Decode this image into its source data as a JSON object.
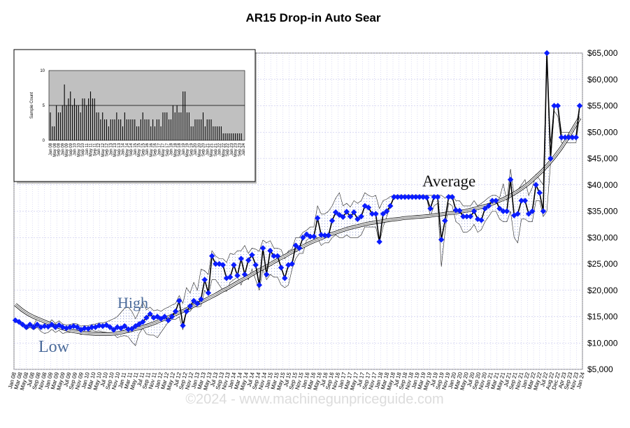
{
  "chart_data": {
    "type": "line",
    "title": "AR15 Drop-in Auto Sear",
    "y_ticks": [
      "$5,000",
      "$10,000",
      "$15,000",
      "$20,000",
      "$25,000",
      "$30,000",
      "$35,000",
      "$40,000",
      "$45,000",
      "$50,000",
      "$55,000",
      "$60,000",
      "$65,000"
    ],
    "ylim": [
      5000,
      65000
    ],
    "x_labels": [
      "Jan 08",
      "Mar 08",
      "May 08",
      "Jul 08",
      "Sep 08",
      "Nov 08",
      "Jan 09",
      "Mar 09",
      "May 09",
      "Jul 09",
      "Sep 09",
      "Nov 09",
      "Jan 10",
      "Mar 10",
      "May 10",
      "Jul 10",
      "Sep 10",
      "Nov 10",
      "Jan 11",
      "Mar 11",
      "May 11",
      "Jul 11",
      "Sep 11",
      "Nov 11",
      "Jan 12",
      "Mar 12",
      "May 12",
      "Jul 12",
      "Sep 12",
      "Nov 12",
      "Jan 13",
      "Mar 13",
      "May 13",
      "Jul 13",
      "Sep 13",
      "Nov 13",
      "Jan 14",
      "Mar 14",
      "May 14",
      "Jul 14",
      "Sep 14",
      "Nov 14",
      "Jan 15",
      "Mar 15",
      "May 15",
      "Jul 15",
      "Sep 15",
      "Nov 15",
      "Jan 16",
      "Mar 16",
      "May 16",
      "Jul 16",
      "Sep 16",
      "Nov 16",
      "Jan 17",
      "Mar 17",
      "May 17",
      "Jul 17",
      "Sep 17",
      "Nov 17",
      "Jan 18",
      "Mar 18",
      "May 18",
      "Jul 18",
      "Sep 18",
      "Nov 18",
      "Jan 19",
      "Mar 19",
      "May 19",
      "Jul 19",
      "Sep 19",
      "Nov 19",
      "Jan 20",
      "Mar 20",
      "May 20",
      "Jul 20",
      "Sep 20",
      "Nov 20",
      "Jan 21",
      "Mar 21",
      "May 21",
      "Jul 21",
      "Sep 21",
      "Nov 21",
      "Jan 22",
      "Mar 22",
      "May 22",
      "Jul 22",
      "Aug 22",
      "Dec 22",
      "Apr 23",
      "Sep 23",
      "Nov 23",
      "Jan 24"
    ],
    "price": [
      14300,
      14000,
      13500,
      13000,
      13500,
      13000,
      13500,
      13000,
      13200,
      13100,
      13500,
      13000,
      13400,
      13000,
      12800,
      13000,
      13200,
      13000,
      12500,
      12800,
      12700,
      13000,
      13000,
      13300,
      13200,
      13400,
      13000,
      12500,
      13000,
      12800,
      13200,
      12600,
      12700,
      13200,
      13600,
      14000,
      14800,
      15500,
      14800,
      15000,
      14600,
      15000,
      14300,
      15000,
      16000,
      18000,
      13300,
      16000,
      17000,
      18000,
      17500,
      18300,
      22000,
      19500,
      26500,
      25000,
      25000,
      24800,
      22300,
      22500,
      24800,
      22800,
      26000,
      23000,
      25700,
      26700,
      24800,
      21000,
      28000,
      23000,
      27500,
      26500,
      26500,
      24300,
      22300,
      24800,
      25000,
      28500,
      28000,
      30000,
      30600,
      30200,
      30200,
      33700,
      30500,
      30400,
      30400,
      33200,
      34800,
      34300,
      33900,
      34900,
      34000,
      34800,
      33500,
      34000,
      36000,
      35700,
      34500,
      34500,
      29200,
      34500,
      35000,
      36000,
      37700,
      37700,
      37700,
      37700,
      37700,
      37700,
      37700,
      37700,
      37700,
      37600,
      35500,
      37700,
      37700,
      29600,
      33200,
      37700,
      37700,
      35200,
      35100,
      34000,
      34000,
      34000,
      35000,
      33500,
      33300,
      35500,
      36000,
      37000,
      37000,
      35500,
      35000,
      35000,
      41000,
      34200,
      34500,
      37000,
      37000,
      34500,
      35000,
      40000,
      38500,
      35000,
      65000,
      45000,
      55000,
      55000,
      49000,
      49000,
      49000,
      49000,
      49000,
      55000
    ],
    "high": [
      14500,
      14200,
      13800,
      13300,
      13800,
      13300,
      14800,
      14200,
      13800,
      13600,
      14400,
      13700,
      14200,
      13600,
      13400,
      13500,
      13700,
      13600,
      13200,
      13300,
      13300,
      13500,
      13600,
      13800,
      13800,
      14000,
      14300,
      14600,
      15000,
      15800,
      16600,
      16800,
      16000,
      14600,
      16000,
      17800,
      16300,
      16800,
      16100,
      16300,
      16000,
      16500,
      16800,
      17200,
      17500,
      19000,
      17500,
      20500,
      19500,
      21500,
      20000,
      24000,
      23700,
      23000,
      27500,
      26500,
      26000,
      26000,
      25300,
      27000,
      26800,
      27500,
      27500,
      28500,
      27000,
      28000,
      27800,
      27400,
      29500,
      29000,
      29400,
      28000,
      28000,
      27700,
      26000,
      27500,
      27800,
      30000,
      30000,
      31000,
      31400,
      32000,
      32000,
      36000,
      34500,
      34500,
      35000,
      36000,
      37500,
      38500,
      36000,
      36500,
      35800,
      37000,
      36500,
      37000,
      38500,
      38000,
      37700,
      38000,
      35500,
      37000,
      37300,
      37800,
      38000,
      38000,
      38000,
      38000,
      38000,
      38000,
      38000,
      38000,
      38000,
      38000,
      38000,
      38000,
      38000,
      38000,
      37500,
      38000,
      38000,
      37000,
      37000,
      36000,
      36000,
      36000,
      37000,
      36000,
      36500,
      37000,
      37600,
      38000,
      38000,
      37500,
      40200,
      37000,
      43000,
      38000,
      39000,
      40000,
      41000,
      38000,
      39500,
      42000,
      41000,
      40000,
      65000,
      48000,
      55000,
      55000,
      50000,
      50000,
      50000,
      50000,
      51000,
      55000
    ],
    "low": [
      14000,
      13700,
      13200,
      12500,
      13000,
      12500,
      13000,
      12200,
      11800,
      12000,
      12600,
      12000,
      12400,
      11800,
      12000,
      12000,
      12400,
      12000,
      11600,
      11800,
      12000,
      12500,
      12200,
      12300,
      12100,
      12000,
      11800,
      11700,
      11000,
      11300,
      11400,
      11200,
      10200,
      9500,
      11800,
      12800,
      11700,
      11500,
      11500,
      11000,
      12000,
      13000,
      14000,
      14500,
      14500,
      15000,
      12500,
      16000,
      16000,
      17000,
      16800,
      17000,
      20000,
      19000,
      22000,
      22000,
      21000,
      20000,
      19800,
      21500,
      22000,
      22500,
      21000,
      23000,
      22000,
      24000,
      22000,
      20000,
      24000,
      22000,
      23000,
      22500,
      22500,
      21000,
      20500,
      21000,
      24000,
      26000,
      27000,
      27000,
      29500,
      30000,
      30000,
      30000,
      28500,
      29000,
      29000,
      30000,
      30500,
      30000,
      30000,
      30500,
      30000,
      30000,
      30000,
      30500,
      32000,
      32000,
      32000,
      32000,
      29000,
      32000,
      34000,
      36000,
      37500,
      37500,
      37500,
      37500,
      37500,
      37500,
      37500,
      37500,
      37500,
      37500,
      34000,
      36000,
      36500,
      24500,
      31000,
      36500,
      36000,
      33000,
      32500,
      31000,
      31000,
      31500,
      32500,
      31000,
      31500,
      33000,
      34000,
      35000,
      35000,
      33500,
      33000,
      33000,
      35000,
      30000,
      29000,
      33500,
      33500,
      33000,
      33000,
      37000,
      37000,
      34000,
      35000,
      44000,
      54000,
      53000,
      48000,
      48000,
      48000,
      48000,
      48000,
      53000
    ],
    "average": [
      17300,
      16300,
      15500,
      14900,
      14400,
      13900,
      13400,
      13000,
      12600,
      12300,
      12100,
      11900,
      11800,
      11700,
      11700,
      11700,
      11800,
      12000,
      12300,
      12600,
      12900,
      13300,
      13700,
      14200,
      14700,
      15200,
      15700,
      16200,
      16800,
      17400,
      18000,
      18600,
      19200,
      19900,
      20500,
      21200,
      21900,
      22500,
      23200,
      23900,
      24500,
      25200,
      25900,
      26500,
      27200,
      27800,
      28400,
      29000,
      29500,
      30000,
      30500,
      30900,
      31300,
      31700,
      32000,
      32300,
      32600,
      32800,
      33000,
      33200,
      33400,
      33500,
      33700,
      33800,
      33900,
      34000,
      34100,
      34300,
      34400,
      34600,
      34700,
      34900,
      35100,
      35400,
      35700,
      36000,
      36400,
      36900,
      37400,
      38000,
      38700,
      39500,
      40400,
      41500,
      42600,
      43900,
      45300,
      46900,
      48700,
      50700,
      52700
    ],
    "sample_counts": [
      4,
      2,
      2,
      5,
      4,
      4,
      5,
      8,
      5,
      6,
      7,
      5,
      6,
      5,
      5,
      4,
      6,
      6,
      5,
      6,
      7,
      6,
      6,
      4,
      4,
      3,
      4,
      3,
      3,
      2,
      3,
      3,
      3,
      4,
      3,
      3,
      2,
      4,
      3,
      3,
      3,
      3,
      3,
      2,
      2,
      3,
      4,
      3,
      3,
      3,
      2,
      3,
      2,
      3,
      3,
      2,
      4,
      4,
      4,
      3,
      3,
      5,
      4,
      5,
      4,
      4,
      7,
      7,
      4,
      4,
      2,
      2,
      3,
      3,
      3,
      3,
      4,
      2,
      3,
      3,
      3,
      2,
      2,
      2,
      2,
      2,
      1,
      1,
      1,
      1,
      1,
      1,
      1,
      1,
      1,
      1
    ],
    "inset_y_ticks": [
      "0",
      "5",
      "10"
    ],
    "inset_ylabel": "Sample Count",
    "inset_x_labels": [
      "Jan 08",
      "May 08",
      "Sep 08",
      "Jan 09",
      "May 09",
      "Sep 09",
      "Jan 10",
      "May 10",
      "Sep 10",
      "Jan 11",
      "May 11",
      "Sep 11",
      "Jan 12",
      "May 12",
      "Sep 12",
      "Jan 13",
      "May 13",
      "Sep 13",
      "Jan 14",
      "May 14",
      "Sep 14",
      "Jan 15",
      "May 15",
      "Sep 15",
      "Jan 16",
      "May 16",
      "Sep 16",
      "Jan 17",
      "May 17",
      "Sep 17",
      "Jan 18",
      "May 18",
      "Sep 18",
      "Jan 19",
      "May 19",
      "Sep 19",
      "Jan 20",
      "May 20",
      "Sep 20",
      "Jan 21",
      "May 21",
      "Sep 21",
      "Jan 22",
      "May 22",
      "Sep 22",
      "Jan 23",
      "May 23",
      "Sep 23",
      "Jan 24"
    ],
    "annotations": {
      "high": "High",
      "low": "Low",
      "average": "Average"
    },
    "watermark": "©2024 - www.machinegunpriceguide.com",
    "colors": {
      "marker": "#0a1cff",
      "plot_bg": "#ffffff",
      "grid": "#b8b8e8",
      "inset_bg": "#c0c0c0"
    }
  }
}
